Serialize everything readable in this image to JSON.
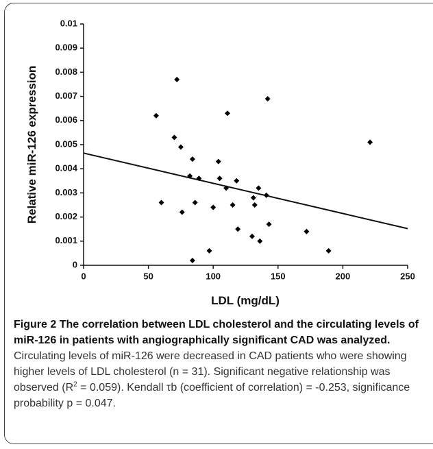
{
  "chart_data": {
    "type": "scatter",
    "xlabel": "LDL (mg/dL)",
    "ylabel": "Relative miR-126 expression",
    "x": [
      56,
      60,
      70,
      72,
      75,
      76,
      82,
      84,
      84,
      86,
      89,
      97,
      100,
      104,
      105,
      110,
      111,
      115,
      118,
      119,
      130,
      131,
      132,
      135,
      136,
      141,
      142,
      143,
      172,
      189,
      221
    ],
    "values": [
      0.0062,
      0.0026,
      0.0053,
      0.0077,
      0.0049,
      0.0022,
      0.0037,
      0.0044,
      0.0002,
      0.0026,
      0.0036,
      0.0006,
      0.0024,
      0.0043,
      0.0036,
      0.0032,
      0.0063,
      0.0025,
      0.0035,
      0.0015,
      0.0012,
      0.0028,
      0.0025,
      0.0032,
      0.001,
      0.0029,
      0.0069,
      0.0017,
      0.0014,
      0.0006,
      0.0051
    ],
    "color": "#000000",
    "fit_line": {
      "x": [
        0,
        250
      ],
      "y": [
        0.00465,
        0.00152
      ]
    },
    "xlim": [
      0,
      250
    ],
    "xticks": [
      0,
      50,
      100,
      150,
      200,
      250
    ],
    "ylim": [
      0,
      0.01
    ],
    "yticks": [
      0,
      0.001,
      0.002,
      0.003,
      0.004,
      0.005,
      0.006,
      0.007,
      0.008,
      0.009,
      0.01
    ]
  },
  "caption": {
    "figure_label": "Figure 2",
    "bold": "The correlation between LDL cholesterol and the circulating levels of miR-126 in patients with angiographically significant CAD was analyzed.",
    "text_1": "Circulating levels of miR-126 were decreased in CAD patients who were showing higher levels of LDL cholesterol (n = 31). Significant negative relationship was observed (R",
    "sup": "2",
    "text_2": " = 0.059). Kendall τb (coefficient of correlation) = -0.253, significance probability p = 0.047."
  }
}
